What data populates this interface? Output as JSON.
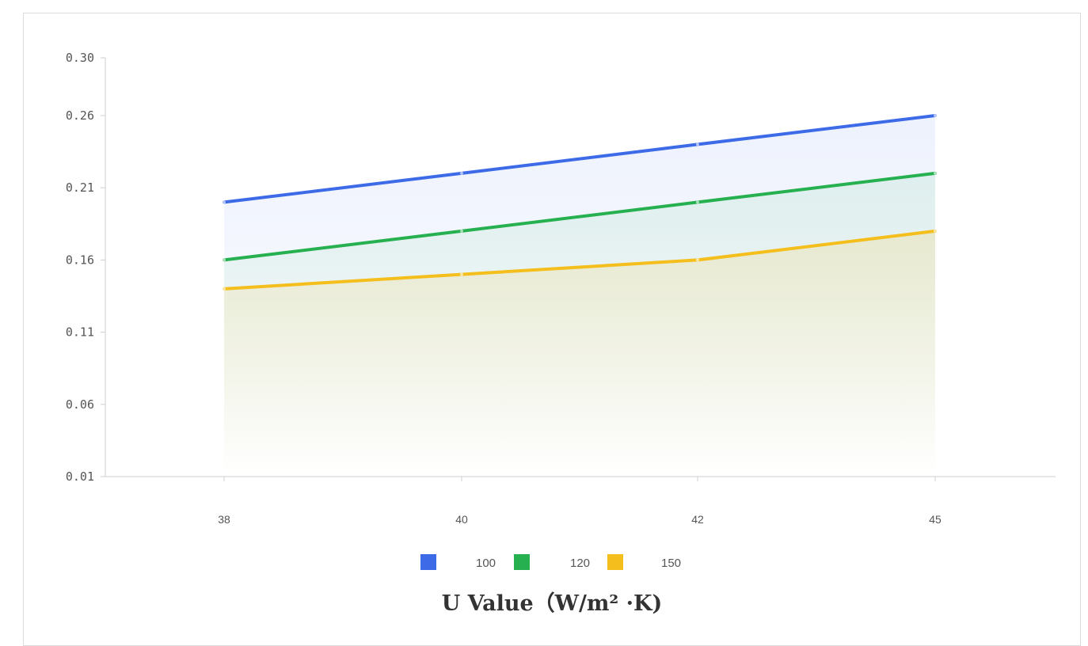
{
  "chart_data": {
    "type": "area",
    "x": [
      "38",
      "40",
      "42",
      "45"
    ],
    "series": [
      {
        "name": "100",
        "color": "#3d6be8",
        "values": [
          0.2,
          0.22,
          0.24,
          0.26
        ]
      },
      {
        "name": "120",
        "color": "#26b04f",
        "values": [
          0.16,
          0.18,
          0.2,
          0.22
        ]
      },
      {
        "name": "150",
        "color": "#f4be1c",
        "values": [
          0.14,
          0.15,
          0.16,
          0.18
        ]
      }
    ],
    "y_ticks": [
      "0.30",
      "0.26",
      "0.21",
      "0.16",
      "0.11",
      "0.06",
      "0.01"
    ],
    "y_tick_values": [
      0.3,
      0.26,
      0.21,
      0.16,
      0.11,
      0.06,
      0.01
    ],
    "ylim": [
      0.01,
      0.3
    ],
    "xlabel": "U Value（W/m² ·K)",
    "legend_position": "bottom-center",
    "grid": false
  }
}
